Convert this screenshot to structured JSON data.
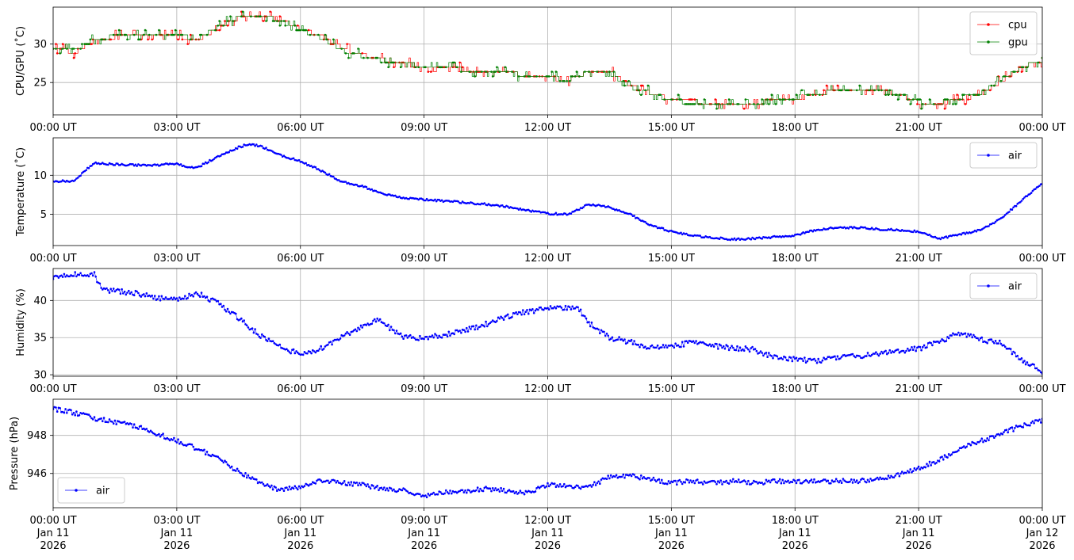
{
  "chart_data": [
    {
      "type": "line",
      "ylabel": "CPU/GPU (˚C)",
      "xlim": [
        "00:00",
        "24:00"
      ],
      "ylim": [
        20.8,
        34.8
      ],
      "yticks": [
        25,
        30
      ],
      "yticklabels": [
        "25",
        "30"
      ],
      "xticklabels": [
        "00:00 UT",
        "03:00 UT",
        "06:00 UT",
        "09:00 UT",
        "12:00 UT",
        "15:00 UT",
        "18:00 UT",
        "21:00 UT",
        "00:00 UT"
      ],
      "grid": true,
      "legend": "top-right",
      "series": [
        {
          "name": "cpu",
          "color": "#ff0000",
          "x": [
            0.0,
            0.5,
            1.0,
            1.5,
            2.0,
            2.5,
            3.0,
            3.5,
            4.0,
            4.5,
            5.0,
            5.5,
            6.0,
            6.5,
            7.0,
            7.5,
            8.0,
            8.5,
            9.0,
            9.5,
            10.0,
            10.5,
            11.0,
            11.5,
            12.0,
            12.5,
            13.0,
            13.5,
            14.0,
            14.5,
            15.0,
            15.5,
            16.0,
            16.5,
            17.0,
            17.5,
            18.0,
            18.5,
            19.0,
            19.5,
            20.0,
            20.5,
            21.0,
            21.5,
            22.0,
            22.5,
            23.0,
            23.5,
            24.0
          ],
          "y": [
            29.3,
            29.0,
            30.4,
            31.0,
            31.0,
            31.0,
            31.0,
            30.6,
            32.0,
            33.4,
            33.9,
            33.2,
            32.0,
            31.0,
            29.4,
            28.6,
            27.9,
            27.6,
            27.0,
            27.0,
            26.6,
            26.6,
            26.2,
            26.0,
            25.6,
            25.3,
            26.4,
            26.4,
            24.6,
            23.6,
            22.8,
            22.6,
            22.2,
            22.4,
            22.4,
            22.6,
            22.9,
            23.6,
            23.8,
            23.8,
            23.8,
            23.6,
            22.4,
            22.3,
            22.8,
            23.4,
            25.2,
            27.0,
            27.9
          ]
        },
        {
          "name": "gpu",
          "color": "#008000",
          "x": [
            0.0,
            0.5,
            1.0,
            1.5,
            2.0,
            2.5,
            3.0,
            3.5,
            4.0,
            4.5,
            5.0,
            5.5,
            6.0,
            6.5,
            7.0,
            7.5,
            8.0,
            8.5,
            9.0,
            9.5,
            10.0,
            10.5,
            11.0,
            11.5,
            12.0,
            12.5,
            13.0,
            13.5,
            14.0,
            14.5,
            15.0,
            15.5,
            16.0,
            16.5,
            17.0,
            17.5,
            18.0,
            18.5,
            19.0,
            19.5,
            20.0,
            20.5,
            21.0,
            21.5,
            22.0,
            22.5,
            23.0,
            23.5,
            24.0
          ],
          "y": [
            29.5,
            29.2,
            30.6,
            31.0,
            31.0,
            31.0,
            31.0,
            30.8,
            32.2,
            33.5,
            33.8,
            33.0,
            31.8,
            30.8,
            29.2,
            28.4,
            27.8,
            27.6,
            27.0,
            27.0,
            26.6,
            26.6,
            26.2,
            26.0,
            25.6,
            25.4,
            26.4,
            26.2,
            24.4,
            23.6,
            22.6,
            22.4,
            22.3,
            22.4,
            22.4,
            22.6,
            23.0,
            23.6,
            23.8,
            23.8,
            23.8,
            23.6,
            22.5,
            22.4,
            23.0,
            23.6,
            25.4,
            27.0,
            27.9
          ]
        }
      ]
    },
    {
      "type": "line",
      "ylabel": "Temperature (˚C)",
      "xlim": [
        "00:00",
        "24:00"
      ],
      "ylim": [
        1.0,
        14.8
      ],
      "yticks": [
        5,
        10
      ],
      "yticklabels": [
        "5",
        "10"
      ],
      "xticklabels": [
        "00:00 UT",
        "03:00 UT",
        "06:00 UT",
        "09:00 UT",
        "12:00 UT",
        "15:00 UT",
        "18:00 UT",
        "21:00 UT",
        "00:00 UT"
      ],
      "grid": true,
      "legend": "top-right",
      "series": [
        {
          "name": "air",
          "color": "#0000ff",
          "x": [
            0.0,
            0.5,
            1.0,
            1.5,
            2.0,
            2.5,
            3.0,
            3.25,
            3.5,
            4.0,
            4.5,
            4.75,
            5.0,
            5.5,
            6.0,
            6.5,
            7.0,
            7.5,
            8.0,
            8.5,
            9.0,
            9.5,
            10.0,
            10.5,
            11.0,
            11.5,
            12.0,
            12.5,
            12.75,
            13.0,
            13.5,
            14.0,
            14.5,
            15.0,
            15.5,
            16.0,
            16.5,
            17.0,
            17.5,
            18.0,
            18.5,
            19.0,
            19.5,
            20.0,
            20.5,
            21.0,
            21.5,
            22.0,
            22.5,
            23.0,
            23.5,
            24.0
          ],
          "y": [
            9.2,
            9.3,
            11.6,
            11.4,
            11.3,
            11.3,
            11.5,
            11.0,
            11.0,
            12.4,
            13.6,
            14.0,
            13.8,
            12.6,
            11.8,
            10.6,
            9.2,
            8.6,
            7.6,
            7.1,
            6.9,
            6.7,
            6.5,
            6.3,
            6.0,
            5.5,
            5.1,
            5.0,
            5.6,
            6.3,
            5.9,
            5.0,
            3.6,
            2.8,
            2.3,
            2.0,
            1.8,
            1.9,
            2.1,
            2.3,
            3.0,
            3.3,
            3.3,
            3.1,
            3.0,
            2.8,
            1.9,
            2.4,
            3.0,
            4.4,
            6.8,
            8.9
          ]
        }
      ]
    },
    {
      "type": "scatter",
      "ylabel": "Humidity (%)",
      "xlim": [
        "00:00",
        "24:00"
      ],
      "ylim": [
        29.8,
        44.3
      ],
      "yticks": [
        30,
        35,
        40
      ],
      "yticklabels": [
        "30",
        "35",
        "40"
      ],
      "xticklabels": [
        "00:00 UT",
        "03:00 UT",
        "06:00 UT",
        "09:00 UT",
        "12:00 UT",
        "15:00 UT",
        "18:00 UT",
        "21:00 UT",
        "00:00 UT"
      ],
      "grid": true,
      "legend": "top-right",
      "series": [
        {
          "name": "air",
          "color": "#0000ff",
          "x": [
            0.0,
            0.5,
            1.0,
            1.2,
            1.5,
            2.0,
            2.5,
            3.0,
            3.5,
            4.0,
            4.5,
            5.0,
            5.5,
            6.0,
            6.5,
            7.0,
            7.5,
            7.8,
            8.0,
            8.5,
            9.0,
            9.5,
            10.0,
            10.5,
            11.0,
            11.5,
            12.0,
            12.5,
            12.75,
            13.0,
            13.5,
            14.0,
            14.5,
            15.0,
            15.5,
            16.0,
            16.5,
            17.0,
            17.5,
            18.0,
            18.5,
            19.0,
            19.5,
            20.0,
            20.5,
            21.0,
            21.5,
            22.0,
            22.5,
            23.0,
            23.5,
            24.0
          ],
          "y": [
            43.2,
            43.5,
            43.5,
            41.4,
            41.3,
            41.0,
            40.4,
            40.0,
            41.0,
            39.6,
            37.6,
            35.4,
            33.8,
            32.7,
            33.5,
            35.0,
            36.5,
            37.4,
            37.0,
            35.0,
            35.0,
            35.4,
            36.0,
            36.8,
            37.8,
            38.5,
            38.9,
            39.0,
            38.8,
            37.0,
            35.0,
            34.4,
            33.6,
            33.9,
            34.3,
            33.9,
            33.6,
            33.4,
            32.4,
            32.1,
            31.9,
            32.2,
            32.5,
            32.8,
            33.2,
            33.5,
            34.5,
            35.6,
            34.8,
            34.2,
            32.0,
            30.4
          ]
        }
      ]
    },
    {
      "type": "scatter",
      "ylabel": "Pressure (hPa)",
      "xlim": [
        "00:00",
        "24:00"
      ],
      "ylim": [
        944.2,
        949.9
      ],
      "yticks": [
        946,
        948
      ],
      "yticklabels": [
        "946",
        "948"
      ],
      "xticklabels": [
        "00:00 UT\nJan 11\n2026",
        "03:00 UT\nJan 11\n2026",
        "06:00 UT\nJan 11\n2026",
        "09:00 UT\nJan 11\n2026",
        "12:00 UT\nJan 11\n2026",
        "15:00 UT\nJan 11\n2026",
        "18:00 UT\nJan 11\n2026",
        "21:00 UT\nJan 11\n2026",
        "00:00 UT\nJan 12\n2026"
      ],
      "grid": true,
      "legend": "bottom-left",
      "series": [
        {
          "name": "air",
          "color": "#0000ff",
          "x": [
            0.0,
            0.5,
            1.0,
            1.5,
            2.0,
            2.5,
            3.0,
            3.5,
            4.0,
            4.5,
            5.0,
            5.5,
            6.0,
            6.5,
            7.0,
            7.5,
            8.0,
            8.5,
            9.0,
            9.5,
            10.0,
            10.5,
            11.0,
            11.5,
            12.0,
            12.5,
            13.0,
            13.5,
            14.0,
            14.5,
            15.0,
            15.5,
            16.0,
            16.5,
            17.0,
            17.5,
            18.0,
            18.5,
            19.0,
            19.5,
            20.0,
            20.5,
            21.0,
            21.5,
            22.0,
            22.5,
            23.0,
            23.5,
            24.0
          ],
          "y": [
            949.4,
            949.2,
            948.9,
            948.7,
            948.5,
            948.1,
            947.7,
            947.3,
            946.8,
            946.1,
            945.5,
            945.1,
            945.3,
            945.6,
            945.5,
            945.4,
            945.2,
            945.1,
            944.8,
            945.0,
            945.1,
            945.2,
            945.1,
            945.0,
            945.4,
            945.3,
            945.3,
            945.8,
            945.9,
            945.7,
            945.5,
            945.6,
            945.5,
            945.6,
            945.5,
            945.6,
            945.6,
            945.6,
            945.6,
            945.6,
            945.7,
            945.9,
            946.3,
            946.7,
            947.3,
            947.7,
            948.1,
            948.5,
            948.8
          ]
        }
      ]
    }
  ]
}
